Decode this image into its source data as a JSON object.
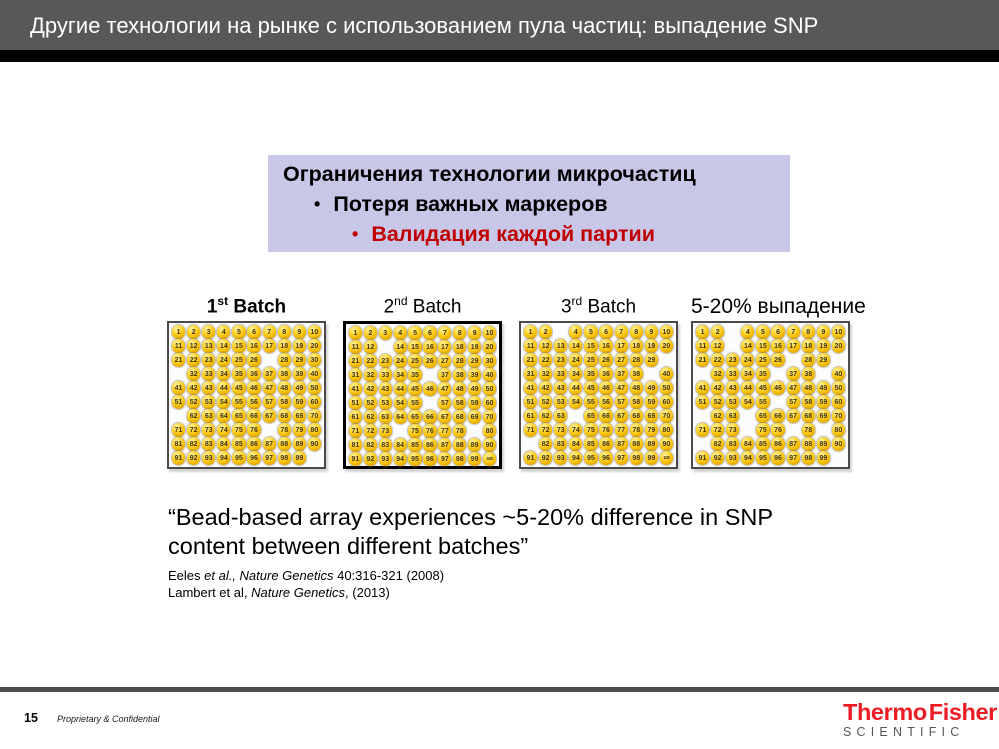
{
  "title_bar": {
    "title": "Другие технологии на рынке с использованием пула частиц: выпадение SNP"
  },
  "limitations_box": {
    "heading": "Ограничения технологии микрочастиц",
    "bullet_char": "•",
    "bullets": [
      {
        "text": "Потеря важных маркеров",
        "emphasis": "black"
      },
      {
        "text": "Валидация каждой партии",
        "emphasis": "red"
      }
    ]
  },
  "grid": {
    "rows": 10,
    "cols": 10,
    "total": 100
  },
  "batches": [
    {
      "label": {
        "pre": "1",
        "sup": "st",
        "post": " Batch"
      },
      "bold": true,
      "emphasized_border": false,
      "missing": [
        27,
        31,
        61,
        77,
        100
      ]
    },
    {
      "label": {
        "pre": "2",
        "sup": "nd",
        "post": " Batch"
      },
      "bold": false,
      "emphasized_border": true,
      "missing": [
        13,
        36,
        56,
        74,
        79
      ]
    },
    {
      "label": {
        "pre": "3",
        "sup": "rd",
        "post": " Batch"
      },
      "bold": false,
      "emphasized_border": false,
      "missing": [
        3,
        30,
        39,
        64,
        81
      ]
    },
    {
      "label": {
        "pre": "5-20% выпадение",
        "sup": "",
        "post": ""
      },
      "bold": false,
      "emphasized_border": false,
      "missing": [
        3,
        13,
        27,
        30,
        31,
        36,
        39,
        56,
        61,
        64,
        74,
        77,
        79,
        81,
        100
      ]
    }
  ],
  "quote": {
    "lines": [
      "“Bead-based array experiences ~5-20% difference in SNP",
      "content between different batches”"
    ],
    "citations": [
      {
        "pre": "Eeles ",
        "italic": "et al., Nature Genetics",
        "post": " 40:316-321 (2008)"
      },
      {
        "pre": "Lambert et al, ",
        "italic": "Nature Genetics",
        "post": ", (2013)"
      }
    ]
  },
  "footer": {
    "page_number": "15",
    "confidential": "Proprietary & Confidential"
  },
  "logo": {
    "word1": "Thermo",
    "word2": "Fisher",
    "sub": "S C I E N T I F I C_DISPLAY",
    "sub_text": "SCIENTIFIC"
  },
  "colors": {
    "titlebar_gray": "#58585a",
    "box_purple": "#c9c7e8",
    "alert_red": "#c00000",
    "brand_red": "#ed1c24",
    "bead_gold": "#f7bf06"
  }
}
